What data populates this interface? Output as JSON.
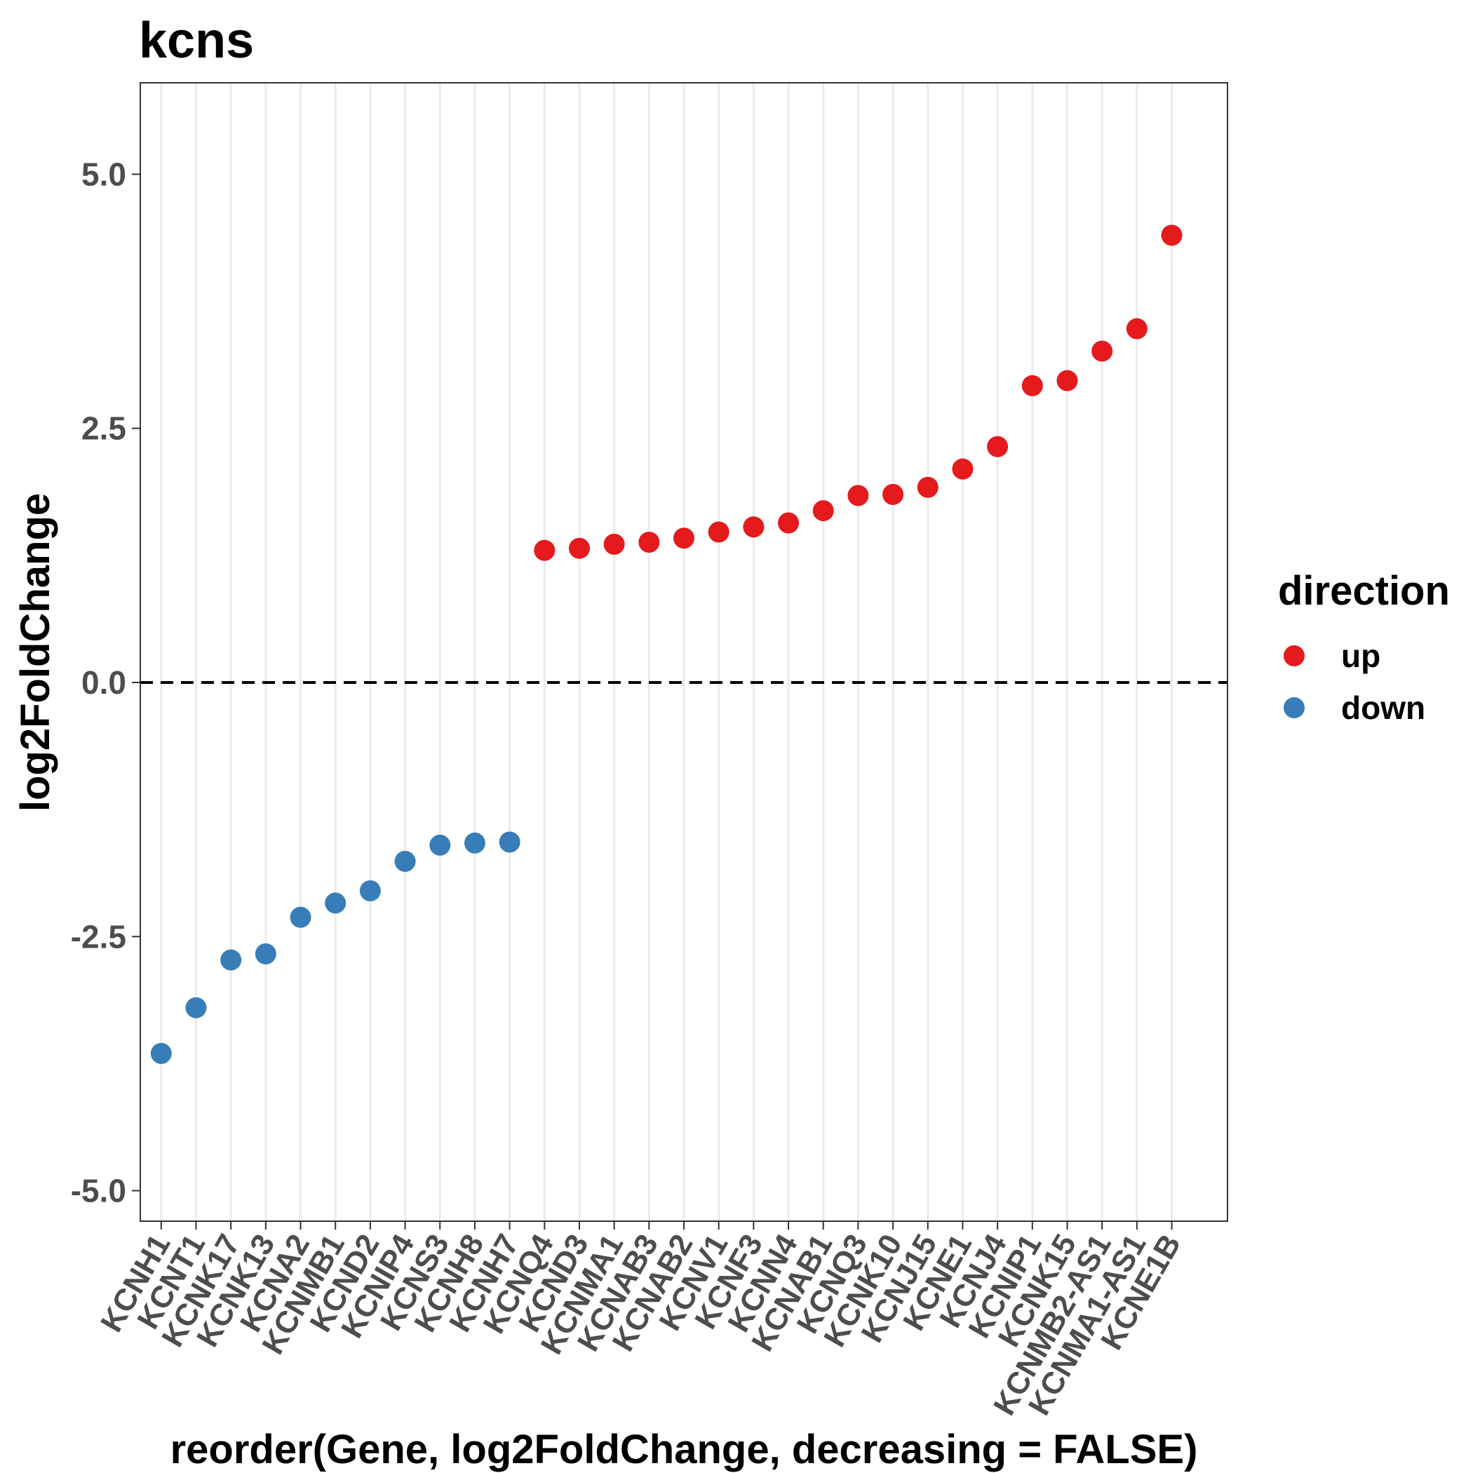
{
  "chart_data": {
    "type": "scatter",
    "title": "kcns",
    "xlabel": "reorder(Gene, log2FoldChange, decreasing = FALSE)",
    "ylabel": "log2FoldChange",
    "ylim": [
      -5.3,
      5.9
    ],
    "yticks": [
      -5.0,
      -2.5,
      0.0,
      2.5,
      5.0
    ],
    "ytick_labels": [
      "-5.0",
      "-2.5",
      "0.0",
      "2.5",
      "5.0"
    ],
    "reference_line": {
      "y": 0,
      "style": "dashed",
      "color": "#000000"
    },
    "grid": "vertical-major",
    "legend": {
      "title": "direction",
      "position": "right",
      "entries": [
        {
          "label": "up",
          "color": "#e41a1c"
        },
        {
          "label": "down",
          "color": "#377eb8"
        }
      ]
    },
    "categories": [
      "KCNH1",
      "KCNT1",
      "KCNK17",
      "KCNK13",
      "KCNA2",
      "KCNMB1",
      "KCND2",
      "KCNIP4",
      "KCNS3",
      "KCNH8",
      "KCNH7",
      "KCNQ4",
      "KCND3",
      "KCNMA1",
      "KCNAB3",
      "KCNAB2",
      "KCNV1",
      "KCNF3",
      "KCNN4",
      "KCNAB1",
      "KCNQ3",
      "KCNK10",
      "KCNJ15",
      "KCNE1",
      "KCNJ4",
      "KCNIP1",
      "KCNK15",
      "KCNMB2-AS1",
      "KCNMA1-AS1",
      "KCNE1B"
    ],
    "values": [
      -3.65,
      -3.2,
      -2.73,
      -2.67,
      -2.31,
      -2.17,
      -2.05,
      -1.76,
      -1.6,
      -1.58,
      -1.57,
      1.3,
      1.32,
      1.36,
      1.38,
      1.42,
      1.48,
      1.53,
      1.57,
      1.69,
      1.84,
      1.85,
      1.92,
      2.1,
      2.32,
      2.92,
      2.97,
      3.26,
      3.48,
      4.4
    ],
    "directions": [
      "down",
      "down",
      "down",
      "down",
      "down",
      "down",
      "down",
      "down",
      "down",
      "down",
      "down",
      "up",
      "up",
      "up",
      "up",
      "up",
      "up",
      "up",
      "up",
      "up",
      "up",
      "up",
      "up",
      "up",
      "up",
      "up",
      "up",
      "up",
      "up",
      "up"
    ]
  }
}
